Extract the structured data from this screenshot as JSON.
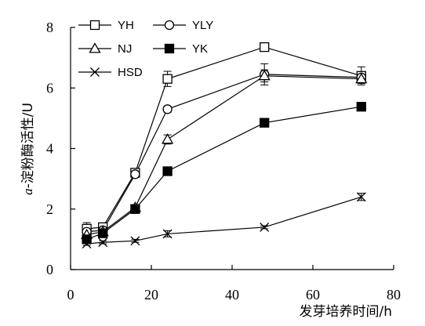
{
  "chart_data": {
    "type": "line",
    "xlabel": "发芽培养时间/h",
    "ylabel_italic": "a",
    "ylabel_rest": "-淀粉酶活性/U",
    "xlim": [
      0,
      80
    ],
    "ylim": [
      0,
      8
    ],
    "xticks": [
      0,
      20,
      40,
      60,
      80
    ],
    "yticks": [
      0,
      2,
      4,
      6,
      8
    ],
    "grid": false,
    "legend_position": "top-left",
    "x": [
      4,
      8,
      16,
      24,
      48,
      72
    ],
    "series": [
      {
        "name": "YH",
        "marker": "square-open",
        "values": [
          1.35,
          1.4,
          3.2,
          6.3,
          7.35,
          6.4
        ],
        "errors": [
          0.2,
          0.1,
          0.1,
          0.25,
          0.1,
          0.3
        ]
      },
      {
        "name": "YLY",
        "marker": "circle-open",
        "values": [
          1.25,
          1.3,
          3.15,
          5.3,
          6.45,
          6.35
        ],
        "errors": [
          0.15,
          0.1,
          0.1,
          0.1,
          0.35,
          0.15
        ]
      },
      {
        "name": "NJ",
        "marker": "triangle-open",
        "values": [
          1.15,
          1.25,
          2.05,
          4.3,
          6.4,
          6.3
        ],
        "errors": [
          0.1,
          0.1,
          0.1,
          0.15,
          0.2,
          0.15
        ]
      },
      {
        "name": "YK",
        "marker": "square-filled",
        "values": [
          1.0,
          1.2,
          2.0,
          3.25,
          4.85,
          5.38
        ],
        "errors": [
          0.1,
          0.05,
          0.05,
          0.1,
          0.08,
          0.08
        ]
      },
      {
        "name": "HSD",
        "marker": "x",
        "values": [
          0.85,
          0.9,
          0.95,
          1.18,
          1.4,
          2.4
        ],
        "errors": [
          0.05,
          0.05,
          0.05,
          0.1,
          0.05,
          0.12
        ]
      }
    ]
  }
}
